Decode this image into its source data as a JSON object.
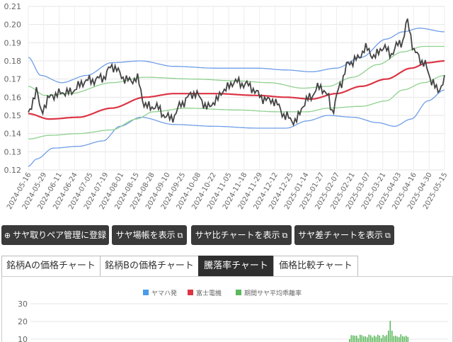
{
  "top_chart": {
    "y_ticks": [
      "0.21",
      "0.20",
      "0.19",
      "0.18",
      "0.17",
      "0.16",
      "0.15",
      "0.14",
      "0.13",
      "0.12"
    ],
    "x_ticks": [
      "2024-05-16",
      "2024-05-29",
      "2024-06-11",
      "2024-06-24",
      "2024-07-05",
      "2024-07-19",
      "2024-08-01",
      "2024-08-15",
      "2024-08-28",
      "2024-09-10",
      "2024-09-25",
      "2024-10-08",
      "2024-10-22",
      "2024-11-05",
      "2024-11-18",
      "2024-11-29",
      "2024-12-12",
      "2024-12-25",
      "2025-01-14",
      "2025-01-27",
      "2025-02-07",
      "2025-02-21",
      "2025-03-07",
      "2025-03-21",
      "2025-04-03",
      "2025-04-16",
      "2025-04-30",
      "2025-05-15"
    ],
    "colors": {
      "ratio": "#444444",
      "mean": "#dc3545",
      "band1": "#8fd18f",
      "band2": "#6f9ee8"
    }
  },
  "buttons": {
    "register": "サヤ取りペア管理に登録",
    "show_market": "サヤ場帳を表示",
    "show_ratio": "サヤ比チャートを表示",
    "show_diff": "サヤ差チャートを表示",
    "register_icon": "plus-circle-icon",
    "external_icon": "external-link-icon"
  },
  "tabs": [
    {
      "label": "銘柄Aの価格チャート"
    },
    {
      "label": "銘柄Bの価格チャート"
    },
    {
      "label": "騰落率チャート"
    },
    {
      "label": "価格比較チャート"
    }
  ],
  "active_tab": "騰落率チャート",
  "bottom_chart": {
    "legend": [
      {
        "label": "ヤマハ発",
        "color": "#4c9be8"
      },
      {
        "label": "富士電機",
        "color": "#dc3545"
      },
      {
        "label": "期間サヤ平均乖離率",
        "color": "#5cb85c"
      }
    ],
    "y_ticks": [
      "30",
      "20",
      "10"
    ]
  }
}
